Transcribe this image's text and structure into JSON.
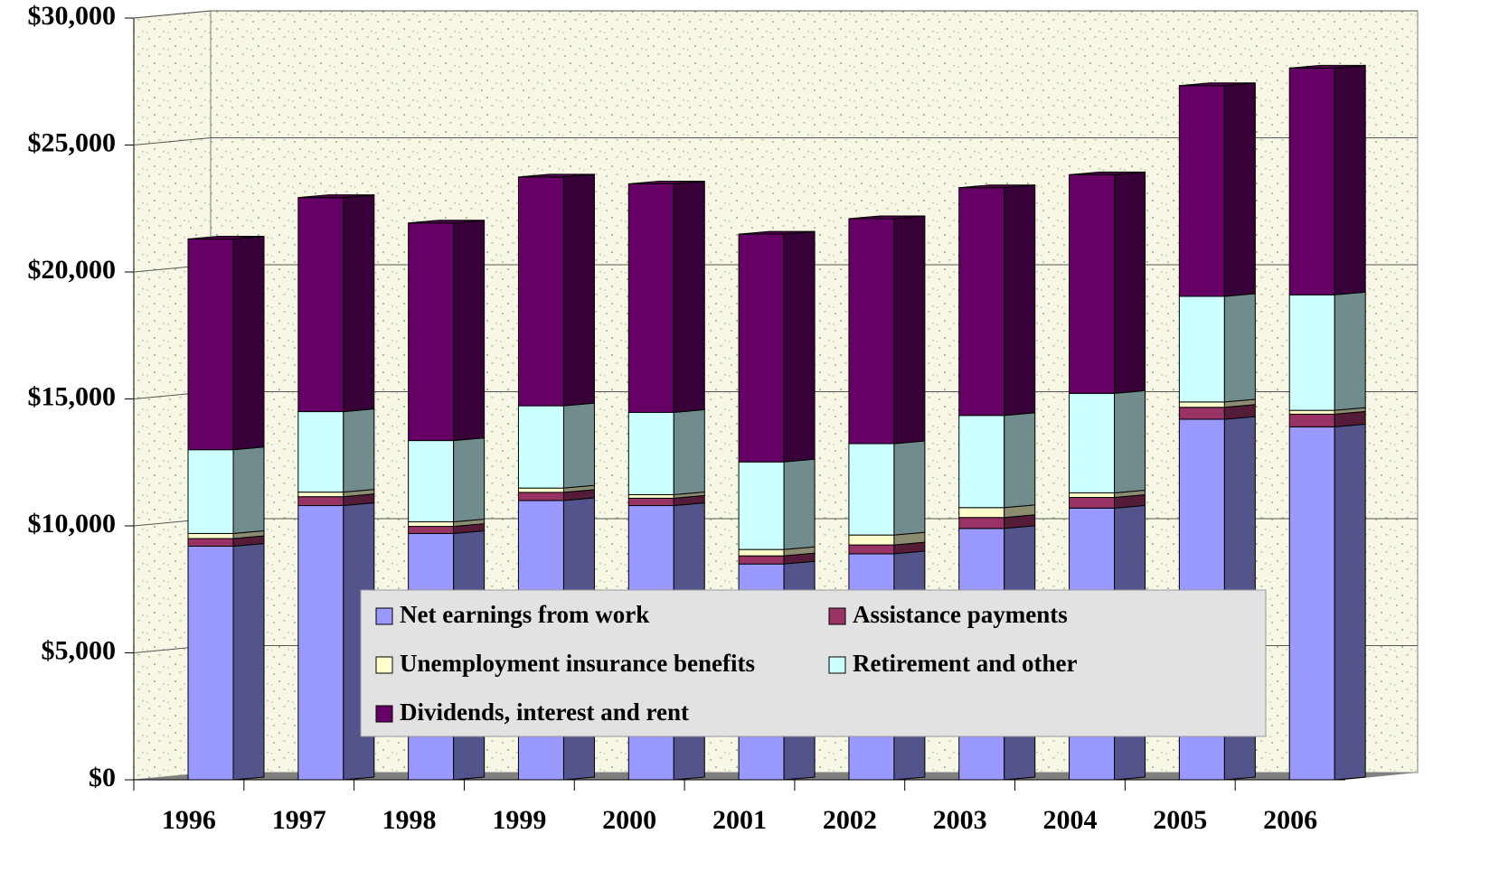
{
  "chart_data": {
    "type": "bar3d_stacked",
    "categories": [
      "1996",
      "1997",
      "1998",
      "1999",
      "2000",
      "2001",
      "2002",
      "2003",
      "2004",
      "2005",
      "2006"
    ],
    "series": [
      {
        "name": "Net earnings from work",
        "color": "#9999ff",
        "values": [
          9200,
          10800,
          9700,
          11000,
          10800,
          8500,
          8900,
          9900,
          10700,
          14200,
          13900
        ]
      },
      {
        "name": "Assistance payments",
        "color": "#993366",
        "values": [
          300,
          350,
          280,
          320,
          290,
          320,
          350,
          430,
          420,
          470,
          500
        ]
      },
      {
        "name": "Unemployment insurance benefits",
        "color": "#ffffcc",
        "values": [
          200,
          180,
          180,
          170,
          140,
          250,
          390,
          390,
          180,
          210,
          150
        ]
      },
      {
        "name": "Retirement and other",
        "color": "#ccffff",
        "values": [
          3300,
          3170,
          3200,
          3240,
          3240,
          3450,
          3600,
          3630,
          3920,
          4160,
          4550
        ]
      },
      {
        "name": "Dividends, interest and rent",
        "color": "#660066",
        "values": [
          8300,
          8430,
          8570,
          9010,
          9000,
          8970,
          8860,
          8970,
          8610,
          8300,
          8930
        ]
      }
    ],
    "ylim": [
      0,
      30000
    ],
    "yticks": [
      {
        "value": 0,
        "label": "$0"
      },
      {
        "value": 5000,
        "label": "$5,000"
      },
      {
        "value": 10000,
        "label": "$10,000"
      },
      {
        "value": 15000,
        "label": "$15,000"
      },
      {
        "value": 20000,
        "label": "$20,000"
      },
      {
        "value": 25000,
        "label": "$25,000"
      },
      {
        "value": 30000,
        "label": "$30,000"
      }
    ],
    "grid": true,
    "legend": "bottom-center"
  }
}
